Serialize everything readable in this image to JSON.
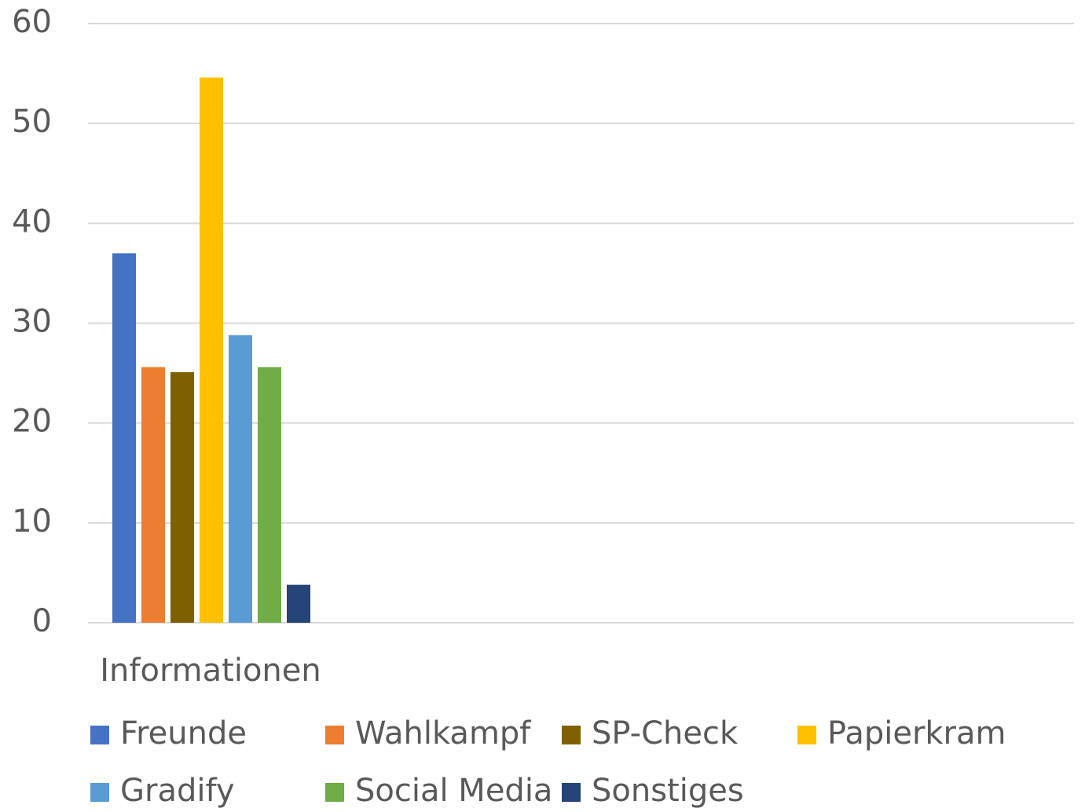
{
  "chart_data": {
    "type": "bar",
    "categories": [
      "Informationen"
    ],
    "series": [
      {
        "name": "Freunde",
        "color": "#4472c4",
        "values": [
          37.0
        ]
      },
      {
        "name": "Wahlkampf",
        "color": "#ed7d31",
        "values": [
          25.6
        ]
      },
      {
        "name": "SP-Check",
        "color": "#7f6000",
        "values": [
          25.1
        ]
      },
      {
        "name": "Papierkram",
        "color": "#ffc000",
        "values": [
          54.6
        ]
      },
      {
        "name": "Gradify",
        "color": "#5b9bd5",
        "values": [
          28.8
        ]
      },
      {
        "name": "Social Media",
        "color": "#70ad47",
        "values": [
          25.6
        ]
      },
      {
        "name": "Sonstiges",
        "color": "#264478",
        "values": [
          3.8
        ]
      }
    ],
    "ylim": [
      0,
      60
    ],
    "yticks": [
      0,
      10,
      20,
      30,
      40,
      50,
      60
    ],
    "grid": true,
    "legend": "bottom"
  }
}
